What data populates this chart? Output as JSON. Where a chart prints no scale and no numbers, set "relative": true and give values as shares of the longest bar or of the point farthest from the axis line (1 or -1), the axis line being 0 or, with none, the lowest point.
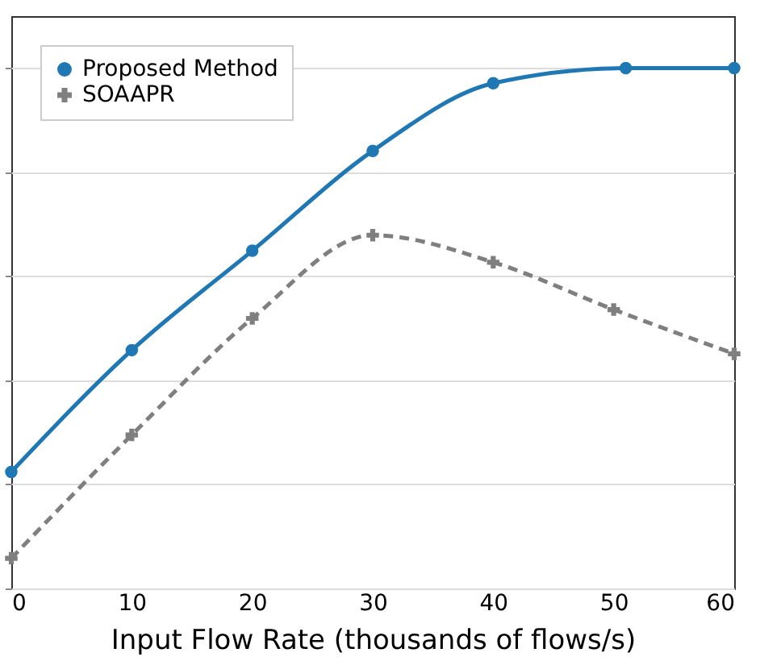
{
  "chart_data": {
    "type": "line",
    "relative": true,
    "xlabel": "Input Flow Rate (thousands of flows/s)",
    "xlim": [
      0,
      60
    ],
    "xticks": [
      0,
      10,
      20,
      30,
      40,
      50,
      60
    ],
    "grid": "y",
    "legend": "top left",
    "series": [
      {
        "name": "Proposed Method",
        "color": "#1f77b4",
        "marker": "circle",
        "line_style": "solid",
        "x": [
          0,
          10,
          20,
          30,
          40,
          51,
          60
        ],
        "values": [
          0.224,
          0.458,
          0.649,
          0.841,
          0.971,
          1.0,
          1.0
        ]
      },
      {
        "name": "SOAAPR",
        "color": "#7f7f7f",
        "marker": "cross",
        "line_style": "dashed",
        "x": [
          0,
          10,
          20,
          30,
          40,
          50,
          60
        ],
        "values": [
          0.058,
          0.295,
          0.519,
          0.679,
          0.627,
          0.536,
          0.451
        ]
      }
    ]
  }
}
